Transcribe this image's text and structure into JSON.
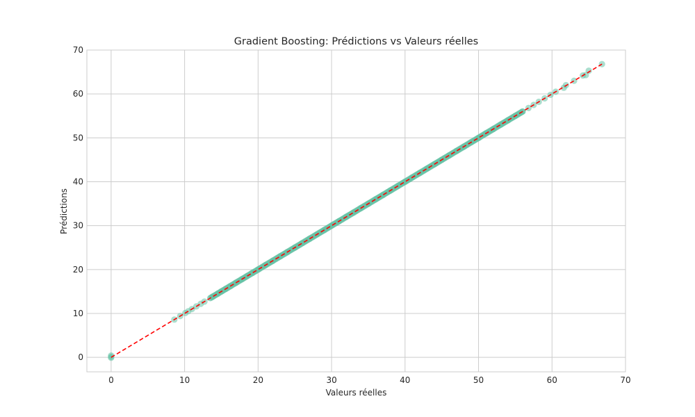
{
  "chart_data": {
    "type": "scatter",
    "title": "Gradient Boosting: Prédictions vs Valeurs réelles",
    "xlabel": "Valeurs réelles",
    "ylabel": "Prédictions",
    "xlim": [
      -3.3,
      70
    ],
    "ylim": [
      -3.3,
      70
    ],
    "xticks": [
      0,
      10,
      20,
      30,
      40,
      50,
      60,
      70
    ],
    "yticks": [
      0,
      10,
      20,
      30,
      40,
      50,
      60,
      70
    ],
    "grid": true,
    "point_color": "#66c2a5",
    "reference_line": {
      "style": "dashed",
      "color": "#ff0000",
      "from": [
        0,
        0
      ],
      "to": [
        66.8,
        66.8
      ]
    },
    "series": [
      {
        "x": [
          0,
          0,
          0,
          8.6,
          9.4,
          10.1,
          10.5,
          11.0,
          11.6,
          12.2,
          12.7,
          13.8,
          14.5,
          15.0,
          15.6,
          16.2,
          17.0,
          17.8,
          18.5,
          19.2,
          20.0,
          21.0,
          22.0,
          23.0,
          24.0,
          25.0,
          26.0,
          27.0,
          28.0,
          29.0,
          30.0,
          31.0,
          32.0,
          33.0,
          34.0,
          35.0,
          36.0,
          37.0,
          38.0,
          39.0,
          40.0,
          41.0,
          42.0,
          43.0,
          44.0,
          45.0,
          46.0,
          47.0,
          48.0,
          49.0,
          50.0,
          51.0,
          52.0,
          53.0,
          54.0,
          55.0,
          56.0,
          56.8,
          57.5,
          58.2,
          59.0,
          59.8,
          60.5,
          61.6,
          61.9,
          63.0,
          64.2,
          64.6,
          65.0,
          66.8
        ],
        "y": [
          0.1,
          0.4,
          -0.1,
          8.6,
          9.4,
          10.1,
          10.5,
          11.0,
          11.6,
          12.2,
          12.7,
          13.8,
          14.5,
          15.0,
          15.6,
          16.2,
          17.0,
          17.8,
          18.5,
          19.2,
          20.0,
          21.0,
          22.0,
          23.0,
          24.0,
          25.0,
          26.0,
          27.0,
          28.0,
          29.0,
          30.0,
          31.0,
          32.0,
          33.0,
          34.0,
          35.0,
          36.0,
          37.0,
          38.0,
          39.0,
          40.0,
          41.0,
          42.0,
          43.0,
          44.0,
          45.0,
          46.0,
          47.0,
          48.0,
          49.0,
          50.0,
          51.0,
          52.0,
          53.0,
          54.0,
          55.0,
          56.0,
          56.8,
          57.5,
          58.2,
          59.0,
          59.8,
          60.5,
          61.4,
          62.0,
          63.0,
          64.2,
          64.3,
          65.3,
          66.8
        ]
      }
    ]
  }
}
